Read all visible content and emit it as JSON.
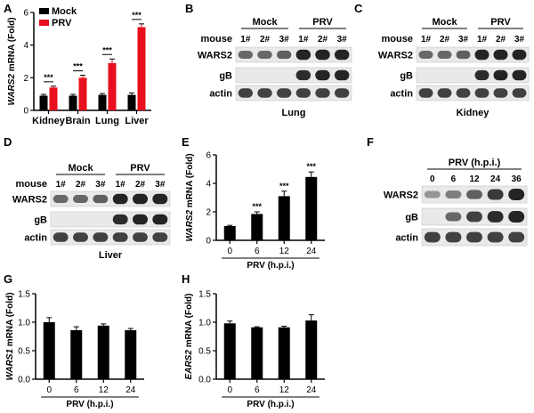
{
  "panels": {
    "A": "A",
    "B": "B",
    "C": "C",
    "D": "D",
    "E": "E",
    "F": "F",
    "G": "G",
    "H": "H"
  },
  "colors": {
    "mock": "#000000",
    "prv": "#e8101e"
  },
  "blot_common": {
    "mouse": "mouse",
    "mock": "Mock",
    "prv": "PRV",
    "lanes": [
      "1#",
      "2#",
      "3#",
      "1#",
      "2#",
      "3#"
    ],
    "rows": [
      "WARS2",
      "gB",
      "actin"
    ]
  },
  "blot_B": {
    "tissue": "Lung"
  },
  "blot_C": {
    "tissue": "Kidney"
  },
  "blot_D": {
    "tissue": "Liver"
  },
  "blot_F": {
    "header": "PRV (h.p.i.)",
    "lanes": [
      "0",
      "6",
      "12",
      "24",
      "36"
    ],
    "rows": [
      "WARS2",
      "gB",
      "actin"
    ]
  },
  "chart_data": [
    {
      "panel": "A",
      "type": "bar",
      "categories": [
        "Kidney",
        "Brain",
        "Lung",
        "Liver"
      ],
      "ylabel_gene": "WARS2",
      "ylabel_rest": " mRNA (Fold)",
      "ylim": [
        0,
        6
      ],
      "yticks": [
        "0",
        "2",
        "4",
        "6"
      ],
      "legend": [
        "Mock",
        "PRV"
      ],
      "series": [
        {
          "name": "Mock",
          "values": [
            0.9,
            0.9,
            0.95,
            0.95
          ],
          "errors": [
            0.08,
            0.08,
            0.08,
            0.12
          ]
        },
        {
          "name": "PRV",
          "values": [
            1.4,
            2.0,
            2.9,
            5.1
          ],
          "errors": [
            0.08,
            0.15,
            0.25,
            0.2
          ]
        }
      ],
      "significance": [
        "***",
        "***",
        "***",
        "***"
      ]
    },
    {
      "panel": "E",
      "type": "bar",
      "categories": [
        "0",
        "6",
        "12",
        "24"
      ],
      "xlabel": "PRV (h.p.i.)",
      "ylabel_gene": "WARS2",
      "ylabel_rest": " mRNA (Fold)",
      "ylim": [
        0,
        6
      ],
      "yticks": [
        "0",
        "2",
        "4",
        "6"
      ],
      "values": [
        1.0,
        1.85,
        3.1,
        4.45
      ],
      "errors": [
        0.05,
        0.15,
        0.35,
        0.35
      ],
      "significance": [
        "",
        "***",
        "***",
        "***"
      ]
    },
    {
      "panel": "G",
      "type": "bar",
      "categories": [
        "0",
        "6",
        "12",
        "24"
      ],
      "xlabel": "PRV (h.p.i.)",
      "ylabel_gene": "WARS1",
      "ylabel_rest": " mRNA (Fold)",
      "ylim": [
        0,
        1.5
      ],
      "yticks": [
        "0.0",
        "0.5",
        "1.0",
        "1.5"
      ],
      "values": [
        1.0,
        0.86,
        0.94,
        0.86
      ],
      "errors": [
        0.08,
        0.06,
        0.03,
        0.03
      ]
    },
    {
      "panel": "H",
      "type": "bar",
      "categories": [
        "0",
        "6",
        "12",
        "24"
      ],
      "xlabel": "PRV (h.p.i.)",
      "ylabel_gene": "EARS2",
      "ylabel_rest": " mRNA (Fold)",
      "ylim": [
        0,
        1.5
      ],
      "yticks": [
        "0.0",
        "0.5",
        "1.0",
        "1.5"
      ],
      "values": [
        0.98,
        0.91,
        0.91,
        1.03
      ],
      "errors": [
        0.04,
        0.01,
        0.02,
        0.1
      ]
    }
  ]
}
